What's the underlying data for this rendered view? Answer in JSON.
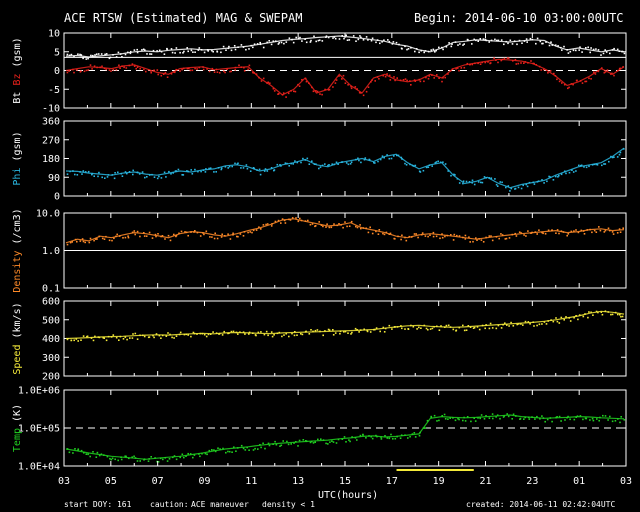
{
  "header": {
    "title": "ACE RTSW (Estimated) MAG & SWEPAM",
    "begin": "Begin: 2014-06-10 03:00:00UTC"
  },
  "footer": {
    "start_doy": "start DOY: 161",
    "caution": "caution:",
    "maneuver": "ACE maneuver",
    "density_note": "density < 1",
    "created": "created: 2014-06-11 02:42:04UTC"
  },
  "colors": {
    "bt": "#ffffff",
    "bz": "#e8211b",
    "phi": "#29b6e0",
    "density": "#ff8a28",
    "speed": "#f4ea3a",
    "temp": "#20d020",
    "maneuver": "#f4ea3a",
    "axis": "#ffffff"
  },
  "chart_data": {
    "type": "line",
    "x_axis": {
      "label": "UTC(hours)",
      "tick_labels": [
        "03",
        "05",
        "07",
        "09",
        "11",
        "13",
        "15",
        "17",
        "19",
        "21",
        "23",
        "01",
        "03"
      ],
      "range_hours": [
        0,
        24
      ]
    },
    "maneuver_interval_hours": [
      14.2,
      17.5
    ],
    "panels": [
      {
        "id": "mag",
        "ylabel_parts": [
          "Bt",
          "Bz",
          "(gsm)"
        ],
        "ylim": [
          -10,
          10
        ],
        "scale": "linear",
        "tick_labels": [
          "10",
          "5",
          "0",
          "-5",
          "-10"
        ],
        "tick_values": [
          10,
          5,
          0,
          -5,
          -10
        ],
        "ref_solid": 3.5,
        "ref_dashed": 0,
        "series": [
          {
            "name": "Bt",
            "color": "#ffffff",
            "values": [
              3.8,
              4.0,
              3.6,
              3.9,
              4.2,
              4.5,
              5.0,
              5.2,
              5.0,
              5.4,
              5.6,
              5.8,
              5.5,
              5.6,
              5.9,
              6.2,
              6.5,
              7.0,
              7.5,
              8.0,
              8.3,
              8.5,
              8.8,
              9.0,
              9.2,
              8.9,
              8.6,
              8.2,
              7.8,
              7.0,
              6.5,
              5.5,
              5.0,
              6.0,
              7.5,
              7.8,
              8.2,
              8.0,
              7.8,
              7.6,
              7.9,
              8.2,
              8.0,
              6.5,
              5.5,
              6.0,
              5.5,
              5.0,
              5.5,
              5.0
            ]
          },
          {
            "name": "Bz",
            "color": "#e8211b",
            "values": [
              0.0,
              0.5,
              1.0,
              0.8,
              0.5,
              1.2,
              1.5,
              0.5,
              -0.5,
              -1.0,
              0.5,
              0.8,
              1.0,
              0.2,
              0.5,
              0.8,
              1.0,
              -2.0,
              -4.0,
              -6.5,
              -5.0,
              -2.0,
              -6.0,
              -5.0,
              -1.0,
              -4.0,
              -6.0,
              -2.0,
              -1.0,
              -2.5,
              -3.0,
              -2.5,
              -1.0,
              -2.0,
              0.5,
              1.5,
              2.0,
              2.5,
              3.0,
              2.8,
              2.5,
              1.8,
              0.5,
              -1.5,
              -4.0,
              -3.0,
              -1.5,
              0.5,
              -1.0,
              1.0
            ]
          }
        ]
      },
      {
        "id": "phi",
        "ylabel_parts": [
          "Phi",
          "(gsm)"
        ],
        "ylim": [
          0,
          360
        ],
        "scale": "linear",
        "tick_labels": [
          "360",
          "270",
          "180",
          "90",
          "0"
        ],
        "tick_values": [
          360,
          270,
          180,
          90,
          0
        ],
        "series": [
          {
            "name": "Phi",
            "color": "#29b6e0",
            "values": [
              120,
              118,
              110,
              105,
              100,
              110,
              115,
              105,
              100,
              110,
              120,
              115,
              125,
              130,
              145,
              150,
              140,
              120,
              130,
              150,
              160,
              175,
              150,
              140,
              160,
              170,
              180,
              165,
              190,
              200,
              160,
              130,
              150,
              160,
              100,
              60,
              70,
              90,
              60,
              40,
              55,
              65,
              75,
              100,
              120,
              140,
              150,
              160,
              190,
              230
            ]
          }
        ]
      },
      {
        "id": "density",
        "ylabel_parts": [
          "Density",
          "(/cm3)"
        ],
        "ylim": [
          0.1,
          10.0
        ],
        "scale": "log",
        "tick_labels": [
          "10.0",
          "1.0",
          "0.1"
        ],
        "tick_values": [
          10.0,
          1.0,
          0.1
        ],
        "ref_solid": 1.0,
        "series": [
          {
            "name": "Density",
            "color": "#ff8a28",
            "values": [
              1.6,
              2.0,
              1.8,
              2.4,
              2.2,
              2.6,
              3.0,
              2.8,
              2.5,
              2.2,
              2.8,
              3.2,
              3.0,
              2.6,
              2.4,
              2.8,
              3.4,
              4.0,
              5.0,
              6.5,
              7.0,
              6.0,
              5.2,
              4.5,
              4.8,
              5.5,
              4.0,
              3.5,
              3.0,
              2.4,
              2.2,
              2.6,
              2.8,
              2.6,
              2.4,
              2.2,
              2.0,
              2.2,
              2.4,
              2.6,
              2.8,
              3.0,
              3.2,
              3.4,
              3.0,
              3.2,
              3.6,
              3.8,
              3.4,
              3.6
            ]
          }
        ]
      },
      {
        "id": "speed",
        "ylabel_parts": [
          "Speed",
          "(km/s)"
        ],
        "ylim": [
          200,
          600
        ],
        "scale": "linear",
        "tick_labels": [
          "600",
          "500",
          "400",
          "300",
          "200"
        ],
        "tick_values": [
          600,
          500,
          400,
          300,
          200
        ],
        "series": [
          {
            "name": "Speed",
            "color": "#f4ea3a",
            "values": [
              400,
              402,
              405,
              408,
              410,
              412,
              415,
              418,
              420,
              418,
              422,
              425,
              428,
              425,
              430,
              432,
              430,
              428,
              426,
              430,
              432,
              434,
              436,
              438,
              440,
              442,
              445,
              448,
              455,
              462,
              468,
              470,
              465,
              462,
              460,
              462,
              466,
              470,
              474,
              478,
              482,
              486,
              492,
              500,
              510,
              520,
              535,
              545,
              540,
              530
            ]
          }
        ]
      },
      {
        "id": "temp",
        "ylabel_parts": [
          "Temp",
          "(K)"
        ],
        "ylim": [
          10000,
          1000000
        ],
        "scale": "log",
        "tick_labels": [
          "1.0E+06",
          "1.0E+05",
          "1.0E+04"
        ],
        "tick_values": [
          1000000,
          100000,
          10000
        ],
        "ref_dashed": 100000,
        "series": [
          {
            "name": "Temp",
            "color": "#20d020",
            "values": [
              28000,
              25000,
              22000,
              20000,
              18000,
              17000,
              16000,
              15000,
              16000,
              17000,
              18000,
              20000,
              22000,
              25000,
              28000,
              30000,
              32000,
              35000,
              38000,
              40000,
              42000,
              44000,
              46000,
              48000,
              52000,
              55000,
              60000,
              62000,
              58000,
              60000,
              65000,
              70000,
              180000,
              200000,
              190000,
              185000,
              190000,
              200000,
              210000,
              220000,
              200000,
              190000,
              180000,
              185000,
              190000,
              200000,
              195000,
              185000,
              180000,
              175000
            ]
          }
        ]
      }
    ]
  }
}
